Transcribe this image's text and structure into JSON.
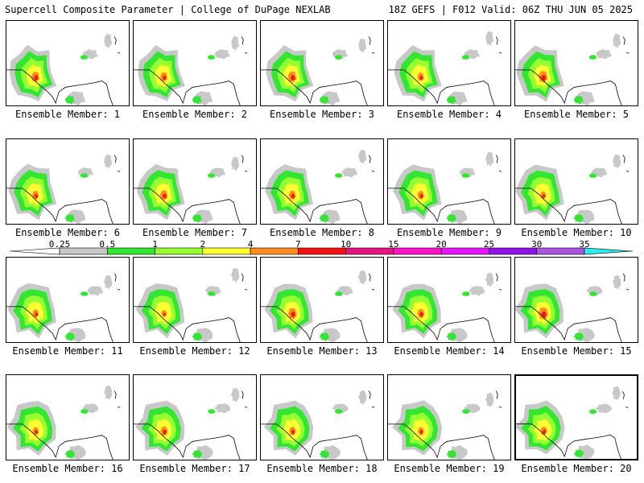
{
  "header": {
    "left": "Supercell Composite Parameter | College of DuPage NEXLAB",
    "right": "18Z GEFS | F012 Valid: 06Z THU JUN 05 2025"
  },
  "legend": {
    "labels": [
      "0.25",
      "0.5",
      "1",
      "2",
      "4",
      "7",
      "10",
      "15",
      "20",
      "25",
      "30",
      "35"
    ],
    "colors": [
      "#c8c8c8",
      "#32e632",
      "#96ff32",
      "#ffff32",
      "#ff8c1e",
      "#f51414",
      "#e6147d",
      "#ff14c8",
      "#e614ff",
      "#8c14e6",
      "#aa55dc",
      "#2deef0"
    ]
  },
  "panels": [
    {
      "caption": "Ensemble Member: 1",
      "intensity": 0.85
    },
    {
      "caption": "Ensemble Member: 2",
      "intensity": 0.75
    },
    {
      "caption": "Ensemble Member: 3",
      "intensity": 0.9
    },
    {
      "caption": "Ensemble Member: 4",
      "intensity": 0.7
    },
    {
      "caption": "Ensemble Member: 5",
      "intensity": 0.95
    },
    {
      "caption": "Ensemble Member: 6",
      "intensity": 0.7
    },
    {
      "caption": "Ensemble Member: 7",
      "intensity": 0.8
    },
    {
      "caption": "Ensemble Member: 8",
      "intensity": 0.75
    },
    {
      "caption": "Ensemble Member: 9",
      "intensity": 0.7
    },
    {
      "caption": "Ensemble Member: 10",
      "intensity": 0.6
    },
    {
      "caption": "Ensemble Member: 11",
      "intensity": 0.65
    },
    {
      "caption": "Ensemble Member: 12",
      "intensity": 0.55
    },
    {
      "caption": "Ensemble Member: 13",
      "intensity": 0.9
    },
    {
      "caption": "Ensemble Member: 14",
      "intensity": 0.75
    },
    {
      "caption": "Ensemble Member: 15",
      "intensity": 1.0
    },
    {
      "caption": "Ensemble Member: 16",
      "intensity": 0.65
    },
    {
      "caption": "Ensemble Member: 17",
      "intensity": 0.75
    },
    {
      "caption": "Ensemble Member: 18",
      "intensity": 0.7
    },
    {
      "caption": "Ensemble Member: 19",
      "intensity": 0.65
    },
    {
      "caption": "Ensemble Member: 20",
      "intensity": 0.7,
      "selected": true
    }
  ]
}
